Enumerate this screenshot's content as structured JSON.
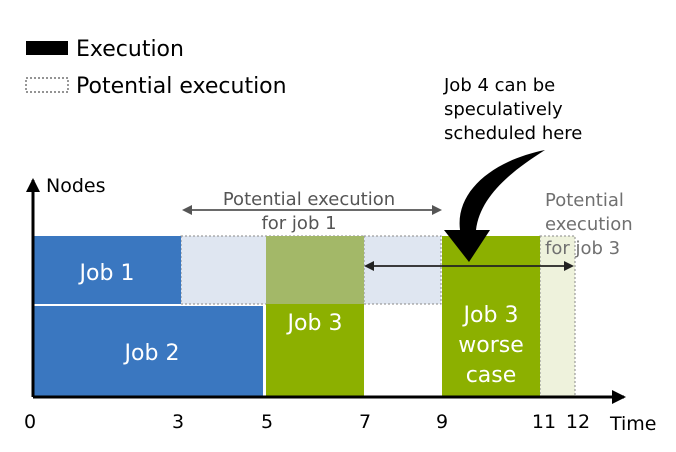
{
  "legend": {
    "execution_label": "Execution",
    "potential_label": "Potential execution"
  },
  "axes": {
    "y_label": "Nodes",
    "x_label": "Time",
    "ticks": [
      "0",
      "3",
      "5",
      "7",
      "9",
      "11",
      "12"
    ]
  },
  "annotations": {
    "job4_line1": "Job 4 can be",
    "job4_line2": "speculatively",
    "job4_line3": "scheduled here",
    "pot_job1_line1": "Potential execution",
    "pot_job1_line2": "for job 1",
    "pot_job3_line1": "Potential",
    "pot_job3_line2": "execution",
    "pot_job3_line3": "for job 3"
  },
  "jobs": {
    "job1": "Job 1",
    "job2": "Job 2",
    "job3": "Job 3",
    "job3_worse_line1": "Job 3",
    "job3_worse_line2": "worse",
    "job3_worse_line3": "case"
  },
  "colors": {
    "blue": "#3a77c0",
    "green": "#8cb000",
    "pale_blue": "#dfe6f1",
    "olive": "#a3b868",
    "pale_green": "#eef2dc"
  }
}
